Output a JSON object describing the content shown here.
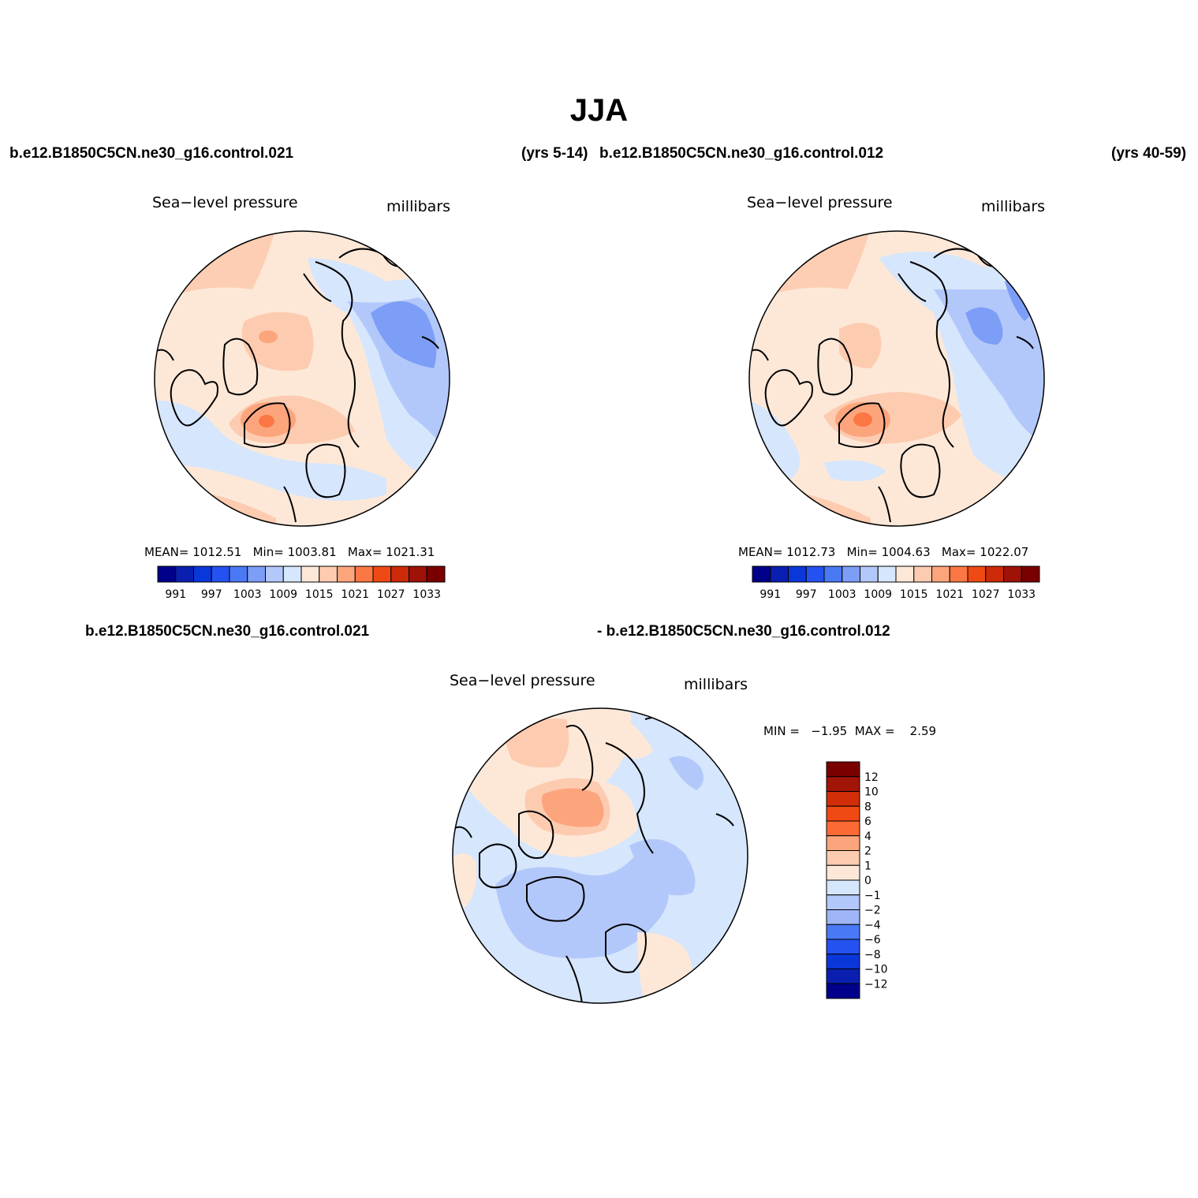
{
  "title": "JJA",
  "header": {
    "case_a": "b.e12.B1850C5CN.ne30_g16.control.021",
    "years_a": "(yrs 5-14)",
    "case_b": "b.e12.B1850C5CN.ne30_g16.control.012",
    "years_b": "(yrs 40-59)"
  },
  "diff_header": {
    "case_a": "b.e12.B1850C5CN.ne30_g16.control.021",
    "case_b": "- b.e12.B1850C5CN.ne30_g16.control.012"
  },
  "panels": [
    {
      "variable": "Sea−level pressure",
      "units": "millibars",
      "mean_label": "MEAN=",
      "mean": "1012.51",
      "min_label": "Min=",
      "min": "1003.81",
      "max_label": "Max=",
      "max": "1021.31"
    },
    {
      "variable": "Sea−level pressure",
      "units": "millibars",
      "mean_label": "MEAN=",
      "mean": "1012.73",
      "min_label": "Min=",
      "min": "1004.63",
      "max_label": "Max=",
      "max": "1022.07"
    }
  ],
  "diff_panel": {
    "variable": "Sea−level pressure",
    "units": "millibars",
    "min_label": "MIN =",
    "min": "−1.95",
    "max_label": "MAX =",
    "max": "2.59"
  },
  "colorbar": {
    "colors": [
      "#00008b",
      "#0a1fb0",
      "#0a37d9",
      "#2452f0",
      "#4a79f5",
      "#7d9ef7",
      "#b3c8fa",
      "#d6e6fc",
      "#fde8d8",
      "#fdcbb0",
      "#fca57c",
      "#fb7744",
      "#f04a14",
      "#cc2a08",
      "#9e1208",
      "#7a0000"
    ],
    "labels": [
      "991",
      "997",
      "1003",
      "1009",
      "1015",
      "1021",
      "1027",
      "1033"
    ]
  },
  "diff_colorbar": {
    "colors_top_to_bottom": [
      "#7a0000",
      "#a31408",
      "#d02d08",
      "#f04a14",
      "#fb6a34",
      "#fca57c",
      "#fdcbb0",
      "#fde8d8",
      "#d6e6fc",
      "#b3c8fa",
      "#9eb6f8",
      "#4a79f5",
      "#2452f0",
      "#0a37d9",
      "#0a1fb0",
      "#00008b"
    ],
    "labels": [
      "12",
      "10",
      "8",
      "6",
      "4",
      "2",
      "1",
      "0",
      "−1",
      "−2",
      "−4",
      "−6",
      "−8",
      "−10",
      "−12"
    ]
  }
}
